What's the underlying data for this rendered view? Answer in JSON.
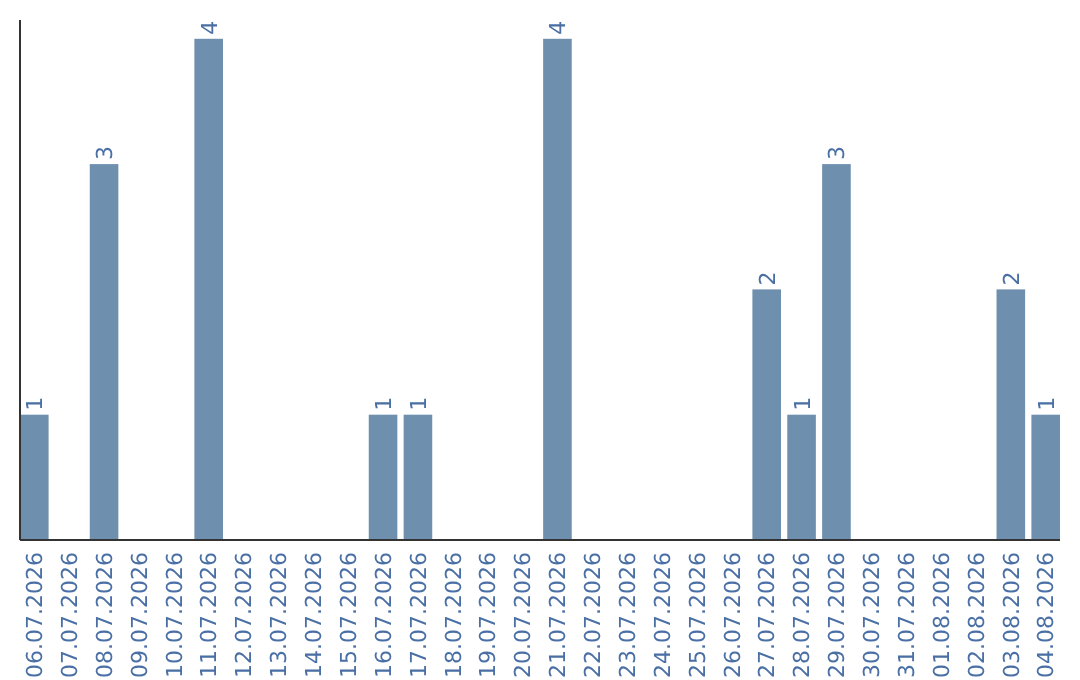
{
  "chart_data": {
    "type": "bar",
    "categories": [
      "06.07.2026",
      "07.07.2026",
      "08.07.2026",
      "09.07.2026",
      "10.07.2026",
      "11.07.2026",
      "12.07.2026",
      "13.07.2026",
      "14.07.2026",
      "15.07.2026",
      "16.07.2026",
      "17.07.2026",
      "18.07.2026",
      "19.07.2026",
      "20.07.2026",
      "21.07.2026",
      "22.07.2026",
      "23.07.2026",
      "24.07.2026",
      "25.07.2026",
      "26.07.2026",
      "27.07.2026",
      "28.07.2026",
      "29.07.2026",
      "30.07.2026",
      "31.07.2026",
      "01.08.2026",
      "02.08.2026",
      "03.08.2026",
      "04.08.2026"
    ],
    "values": [
      1,
      0,
      3,
      0,
      0,
      4,
      0,
      0,
      0,
      0,
      1,
      1,
      0,
      0,
      0,
      4,
      0,
      0,
      0,
      0,
      0,
      2,
      1,
      3,
      0,
      0,
      0,
      0,
      2,
      1
    ],
    "value_labels": [
      "1",
      null,
      "3",
      null,
      null,
      "4",
      null,
      null,
      null,
      null,
      "1",
      "1",
      null,
      null,
      null,
      "4",
      null,
      null,
      null,
      null,
      null,
      "2",
      "1",
      "3",
      null,
      null,
      null,
      null,
      "2",
      "1"
    ],
    "color": "#6f8fae",
    "ylim": [
      0,
      4.15
    ],
    "tick_labels": "x"
  }
}
